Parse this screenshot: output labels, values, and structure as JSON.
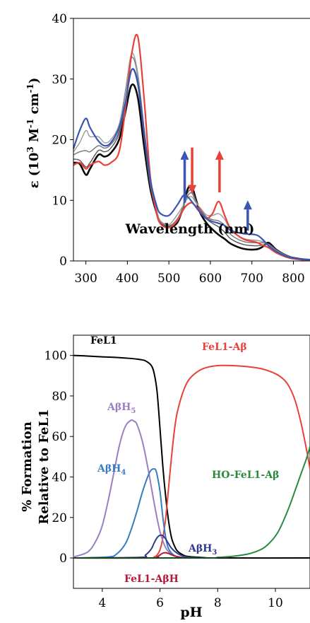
{
  "chart_data": [
    {
      "type": "line",
      "ylabel_parts": [
        "ε (10",
        "3",
        " M",
        "-1",
        " cm",
        "-1",
        ")"
      ],
      "xlabel": "Wavelength (nm)",
      "xlim": [
        270,
        840
      ],
      "ylim": [
        0,
        40
      ],
      "xticks": [
        300,
        400,
        500,
        600,
        700,
        800
      ],
      "yticks": [
        0,
        10,
        20,
        30,
        40
      ],
      "grid": false,
      "series": [
        {
          "color": "#0a0a0a",
          "width": 2.6,
          "x": [
            270,
            285,
            300,
            310,
            330,
            345,
            360,
            380,
            395,
            410,
            425,
            440,
            455,
            470,
            480,
            500,
            520,
            535,
            545,
            555,
            565,
            575,
            590,
            605,
            620,
            635,
            650,
            680,
            710,
            725,
            740,
            760,
            790,
            820,
            840
          ],
          "y": [
            16.2,
            16.0,
            14.2,
            15.2,
            17.5,
            17.2,
            17.8,
            20,
            24.5,
            29,
            27,
            19,
            12,
            8,
            6.3,
            5.6,
            6.3,
            9,
            11.8,
            12.3,
            10.2,
            8,
            6.3,
            5.2,
            4.3,
            3.6,
            2.8,
            2,
            1.9,
            2.3,
            3,
            1.8,
            0.7,
            0.3,
            0.2
          ]
        },
        {
          "color": "#555555",
          "width": 1.4,
          "x": [
            270,
            285,
            300,
            310,
            330,
            345,
            360,
            380,
            395,
            410,
            425,
            440,
            455,
            470,
            480,
            500,
            520,
            535,
            545,
            555,
            565,
            575,
            590,
            605,
            620,
            635,
            650,
            680,
            710,
            725,
            740,
            760,
            790,
            820,
            840
          ],
          "y": [
            16.8,
            16.6,
            15.5,
            16.2,
            18.2,
            18,
            18.6,
            21,
            26,
            31.5,
            29,
            20.5,
            12.5,
            8.2,
            6.4,
            5.7,
            6.6,
            9,
            11.2,
            11.7,
            10,
            8.5,
            7,
            6.2,
            5.6,
            4.7,
            3.6,
            2.7,
            2.5,
            2.6,
            2.8,
            1.8,
            0.7,
            0.3,
            0.2
          ]
        },
        {
          "color": "#777777",
          "width": 1.4,
          "x": [
            270,
            285,
            300,
            310,
            330,
            345,
            360,
            380,
            395,
            410,
            425,
            440,
            455,
            470,
            480,
            500,
            520,
            535,
            545,
            555,
            565,
            575,
            590,
            605,
            620,
            635,
            650,
            680,
            710,
            725,
            740,
            760,
            790,
            820,
            840
          ],
          "y": [
            17.5,
            18,
            18.2,
            18,
            19,
            18.6,
            19.2,
            21.5,
            27.5,
            33.5,
            30.5,
            21.5,
            13,
            8.4,
            6.5,
            5.8,
            6.9,
            9,
            10.7,
            11.2,
            9.8,
            8.7,
            7.3,
            6.8,
            6.6,
            5.8,
            4.3,
            3.2,
            3,
            3,
            2.7,
            1.7,
            0.7,
            0.3,
            0.2
          ]
        },
        {
          "color": "#999999",
          "width": 1.4,
          "x": [
            270,
            285,
            300,
            310,
            330,
            345,
            360,
            380,
            395,
            410,
            425,
            440,
            455,
            470,
            480,
            500,
            520,
            535,
            545,
            555,
            565,
            575,
            590,
            605,
            620,
            635,
            650,
            680,
            710,
            725,
            740,
            760,
            790,
            820,
            840
          ],
          "y": [
            18,
            19.5,
            21.5,
            20.5,
            20.5,
            19.5,
            20,
            22.5,
            28,
            34.2,
            31,
            22,
            13.2,
            8.5,
            6.6,
            6,
            7.6,
            9.2,
            10.3,
            10.6,
            9.6,
            8.8,
            7.6,
            7.5,
            7.8,
            6.8,
            5,
            3.7,
            3.4,
            3.2,
            2.6,
            1.6,
            0.7,
            0.3,
            0.2
          ]
        },
        {
          "color": "#e8413a",
          "width": 2.2,
          "x": [
            270,
            285,
            300,
            310,
            330,
            345,
            360,
            380,
            395,
            410,
            425,
            440,
            455,
            470,
            480,
            500,
            520,
            535,
            545,
            555,
            565,
            575,
            590,
            605,
            620,
            635,
            650,
            680,
            710,
            725,
            740,
            760,
            790,
            820,
            840
          ],
          "y": [
            15.8,
            16.2,
            15.2,
            15.8,
            16.4,
            15.8,
            16.2,
            18,
            25,
            34,
            37,
            27,
            14,
            8,
            6.1,
            5.5,
            6.6,
            8.5,
            9.3,
            9.6,
            9,
            8.3,
            7,
            7.8,
            9.8,
            7.4,
            5.2,
            3.6,
            3.1,
            2.6,
            2.2,
            1.3,
            0.5,
            0.2,
            0.1
          ]
        },
        {
          "color": "#3a55b4",
          "width": 2.2,
          "x": [
            270,
            285,
            300,
            310,
            330,
            345,
            360,
            380,
            395,
            410,
            425,
            440,
            455,
            470,
            480,
            500,
            520,
            535,
            545,
            555,
            565,
            575,
            590,
            605,
            620,
            635,
            650,
            680,
            710,
            725,
            740,
            760,
            790,
            820,
            840
          ],
          "y": [
            18.5,
            21.5,
            23.5,
            22,
            19.8,
            19,
            19.5,
            22,
            26,
            31.5,
            29.5,
            21.5,
            13.5,
            9.2,
            7.8,
            7.5,
            9.2,
            10.8,
            10.6,
            9.8,
            8.9,
            8,
            7,
            6.5,
            6.2,
            5.8,
            5,
            4.5,
            4.3,
            3.6,
            2.5,
            1.5,
            0.6,
            0.3,
            0.2
          ]
        }
      ],
      "arrows": [
        {
          "x": 538,
          "y_from": 9.6,
          "y_to": 18.2,
          "color": "#3a55b4"
        },
        {
          "x": 556,
          "y_from": 18.7,
          "y_to": 11.0,
          "color": "#e8413a"
        },
        {
          "x": 622,
          "y_from": 11.3,
          "y_to": 18.2,
          "color": "#e8413a"
        },
        {
          "x": 690,
          "y_from": 5.0,
          "y_to": 10.0,
          "color": "#3a55b4"
        }
      ]
    },
    {
      "type": "line",
      "ylabel_lines": [
        "% Formation",
        "Relative to FeL1"
      ],
      "xlabel": "pH",
      "xlim": [
        3.0,
        11.2
      ],
      "ylim": [
        -15,
        110
      ],
      "xticks": [
        4,
        6,
        8,
        10
      ],
      "yticks": [
        0,
        20,
        40,
        60,
        80,
        100
      ],
      "grid": false,
      "series": [
        {
          "name": "FeL1",
          "color": "#000000",
          "x": [
            3.0,
            3.5,
            4.0,
            4.5,
            5.0,
            5.3,
            5.5,
            5.7,
            5.8,
            5.9,
            6.0,
            6.1,
            6.2,
            6.3,
            6.4,
            6.5,
            6.6,
            6.8,
            7.0,
            7.5,
            8.0,
            11.2
          ],
          "y": [
            100,
            99.7,
            99.3,
            99,
            98.5,
            98,
            97.3,
            95,
            91,
            82,
            64,
            45,
            30,
            18,
            10,
            6,
            3.5,
            1.5,
            0.7,
            0.2,
            0,
            0
          ]
        },
        {
          "name": "FeL1-Aβ",
          "color": "#e8413a",
          "x": [
            3.0,
            5.5,
            5.8,
            5.9,
            6.0,
            6.1,
            6.2,
            6.3,
            6.4,
            6.5,
            6.6,
            6.8,
            7.0,
            7.3,
            7.6,
            8.0,
            8.5,
            9.0,
            9.5,
            10.0,
            10.3,
            10.5,
            10.7,
            10.9,
            11.1,
            11.2
          ],
          "y": [
            0,
            0,
            0.5,
            1.5,
            4,
            10,
            20,
            35,
            50,
            63,
            72,
            82,
            88,
            92,
            94,
            95,
            95,
            94.5,
            93.5,
            91,
            88,
            84,
            77,
            66,
            52,
            44
          ]
        },
        {
          "name": "AβH5",
          "color": "#9b7fc0",
          "x": [
            3.0,
            3.5,
            3.8,
            4.0,
            4.2,
            4.4,
            4.6,
            4.8,
            5.0,
            5.1,
            5.2,
            5.4,
            5.6,
            5.8,
            6.0,
            6.2,
            6.4,
            6.6,
            6.8,
            7.0
          ],
          "y": [
            0.5,
            3,
            9,
            16,
            28,
            42,
            56,
            65,
            68,
            67.5,
            66,
            57,
            43,
            27,
            13,
            5,
            1.8,
            0.6,
            0.2,
            0
          ]
        },
        {
          "name": "AβH4",
          "color": "#3a7bbf",
          "x": [
            3.0,
            4.2,
            4.5,
            4.8,
            5.0,
            5.2,
            5.4,
            5.6,
            5.7,
            5.8,
            5.85,
            5.9,
            6.0,
            6.1,
            6.2,
            6.3,
            6.5,
            6.8,
            7.0
          ],
          "y": [
            0,
            0.5,
            2,
            7,
            14,
            23,
            33,
            41,
            43.5,
            44,
            43.5,
            41,
            33,
            20,
            10,
            4.5,
            1.2,
            0.2,
            0
          ]
        },
        {
          "name": "AβH3",
          "color": "#2e3b8f",
          "x": [
            3.0,
            5.3,
            5.5,
            5.7,
            5.8,
            5.9,
            6.0,
            6.1,
            6.2,
            6.3,
            6.4,
            6.6,
            6.8,
            7.0,
            7.5
          ],
          "y": [
            0,
            0.3,
            1.5,
            4.5,
            7.5,
            10,
            11.2,
            11,
            9.3,
            7,
            4.8,
            2.3,
            1,
            0.4,
            0
          ]
        },
        {
          "name": "FeL1-AβH",
          "color": "#b5193a",
          "x": [
            3.0,
            5.7,
            5.9,
            6.0,
            6.1,
            6.2,
            6.3,
            6.4,
            6.5,
            6.7,
            6.9,
            7.2
          ],
          "y": [
            0,
            0,
            0.6,
            1.5,
            2.4,
            2.6,
            2.2,
            1.6,
            1,
            0.4,
            0.1,
            0
          ]
        },
        {
          "name": "HO-FeL1-Aβ",
          "color": "#2a8a3e",
          "x": [
            3.0,
            7.5,
            8.0,
            8.5,
            9.0,
            9.3,
            9.6,
            9.9,
            10.1,
            10.3,
            10.5,
            10.7,
            10.9,
            11.1,
            11.2
          ],
          "y": [
            0,
            0,
            0.3,
            0.8,
            1.8,
            3,
            5,
            9,
            13,
            19,
            26,
            34,
            42,
            50,
            55
          ]
        }
      ],
      "labels": [
        {
          "text": "FeL1",
          "color": "#000000",
          "sub": ""
        },
        {
          "text": "FeL1-Aβ",
          "color": "#e8413a",
          "sub": ""
        },
        {
          "text": "AβH",
          "color": "#9b7fc0",
          "sub": "5"
        },
        {
          "text": "AβH",
          "color": "#3a7bbf",
          "sub": "4"
        },
        {
          "text": "HO-FeL1-Aβ",
          "color": "#2a8a3e",
          "sub": ""
        },
        {
          "text": "AβH",
          "color": "#2e3b8f",
          "sub": "3"
        },
        {
          "text": "FeL1-AβH",
          "color": "#b5193a",
          "sub": ""
        }
      ]
    }
  ]
}
